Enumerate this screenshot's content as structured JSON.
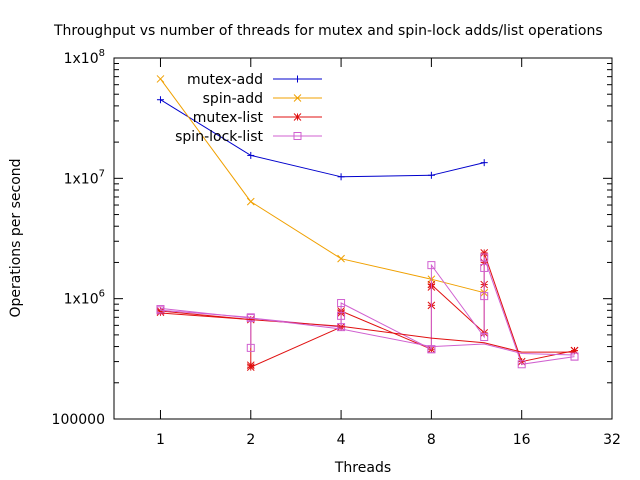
{
  "chart_data": {
    "type": "line",
    "title": "Throughput vs number of threads for mutex and spin-lock adds/list operations",
    "xlabel": "Threads",
    "ylabel": "Operations per second",
    "x_scale": "log2",
    "y_scale": "log10",
    "xlim": [
      0.7,
      32
    ],
    "ylim": [
      100000,
      100000000
    ],
    "x_ticks": [
      1,
      2,
      4,
      8,
      16,
      32
    ],
    "x_tick_labels": [
      "1",
      "2",
      "4",
      "8",
      "16",
      "32"
    ],
    "y_ticks": [
      100000,
      1000000,
      10000000,
      100000000
    ],
    "y_tick_labels": [
      "100000",
      "1x10^6",
      "1x10^7",
      "1x10^8"
    ],
    "legend_position": "top-left",
    "grid": false,
    "series": [
      {
        "name": "mutex-add",
        "color": "#0000cc",
        "marker": "plus",
        "points": [
          [
            1,
            45000000
          ],
          [
            2,
            15500000
          ],
          [
            4,
            10300000
          ],
          [
            8,
            10600000
          ],
          [
            12,
            13500000
          ]
        ]
      },
      {
        "name": "spin-add",
        "color": "#f0a000",
        "marker": "cross",
        "points": [
          [
            1,
            67000000
          ],
          [
            2,
            6400000
          ],
          [
            4,
            2150000
          ],
          [
            8,
            1450000
          ],
          [
            12,
            1120000
          ]
        ]
      },
      {
        "name": "mutex-list",
        "color": "#e01010",
        "marker": "star",
        "points": [
          [
            1,
            770000
          ],
          [
            1,
            790000
          ],
          [
            2,
            670000
          ],
          [
            2,
            280000
          ],
          [
            2,
            270000
          ],
          [
            4,
            580000
          ],
          [
            4,
            760000
          ],
          [
            4,
            790000
          ],
          [
            8,
            380000
          ],
          [
            8,
            880000
          ],
          [
            8,
            1250000
          ],
          [
            8,
            1310000
          ],
          [
            12,
            520000
          ],
          [
            12,
            1310000
          ],
          [
            12,
            2000000
          ],
          [
            12,
            2400000
          ],
          [
            16,
            300000
          ],
          [
            24,
            370000
          ],
          [
            24,
            370000
          ]
        ]
      },
      {
        "name": "spin-lock-list",
        "color": "#d060d0",
        "marker": "square",
        "points": [
          [
            1,
            820000
          ],
          [
            1,
            800000
          ],
          [
            2,
            700000
          ],
          [
            2,
            390000
          ],
          [
            2,
            690000
          ],
          [
            4,
            580000
          ],
          [
            4,
            720000
          ],
          [
            4,
            920000
          ],
          [
            8,
            380000
          ],
          [
            8,
            380000
          ],
          [
            8,
            1900000
          ],
          [
            12,
            480000
          ],
          [
            12,
            1050000
          ],
          [
            12,
            1800000
          ],
          [
            12,
            2200000
          ],
          [
            16,
            285000
          ],
          [
            24,
            330000
          ],
          [
            24,
            330000
          ]
        ]
      },
      {
        "name": "",
        "color": "#e01010",
        "marker": "none",
        "points": [
          [
            1,
            760000
          ],
          [
            4,
            590000
          ],
          [
            8,
            470000
          ],
          [
            12,
            430000
          ],
          [
            16,
            360000
          ],
          [
            24,
            360000
          ]
        ]
      },
      {
        "name": "",
        "color": "#d060d0",
        "marker": "none",
        "points": [
          [
            1,
            830000
          ],
          [
            2,
            690000
          ],
          [
            4,
            560000
          ],
          [
            8,
            400000
          ],
          [
            12,
            420000
          ],
          [
            16,
            350000
          ],
          [
            24,
            340000
          ]
        ]
      }
    ]
  }
}
